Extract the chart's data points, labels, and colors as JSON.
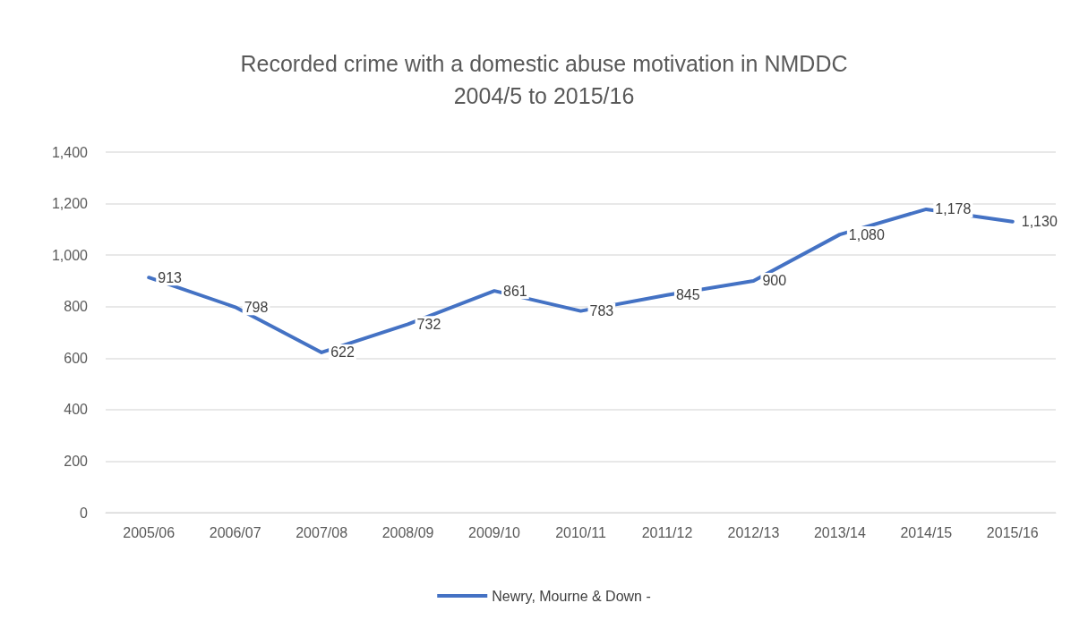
{
  "chart_data": {
    "type": "line",
    "title": "Recorded crime with a domestic abuse motivation in NMDDC\n2004/5 to 2015/16",
    "categories": [
      "2005/06",
      "2006/07",
      "2007/08",
      "2008/09",
      "2009/10",
      "2010/11",
      "2011/12",
      "2012/13",
      "2013/14",
      "2014/15",
      "2015/16"
    ],
    "series": [
      {
        "name": "Newry, Mourne & Down -",
        "color": "#4472c4",
        "values": [
          913,
          798,
          622,
          732,
          861,
          783,
          845,
          900,
          1080,
          1178,
          1130
        ],
        "value_labels": [
          "913",
          "798",
          "622",
          "732",
          "861",
          "783",
          "845",
          "900",
          "1,080",
          "1,178",
          "1,130"
        ]
      }
    ],
    "ylim": [
      0,
      1400
    ],
    "yticks": [
      {
        "value": 0,
        "label": "0"
      },
      {
        "value": 200,
        "label": "200"
      },
      {
        "value": 400,
        "label": "400"
      },
      {
        "value": 600,
        "label": "600"
      },
      {
        "value": 800,
        "label": "800"
      },
      {
        "value": 1000,
        "label": "1,000"
      },
      {
        "value": 1200,
        "label": "1,200"
      },
      {
        "value": 1400,
        "label": "1,400"
      }
    ],
    "grid": "y",
    "legend": "bottom",
    "marker": "none",
    "line_style": "solid"
  }
}
